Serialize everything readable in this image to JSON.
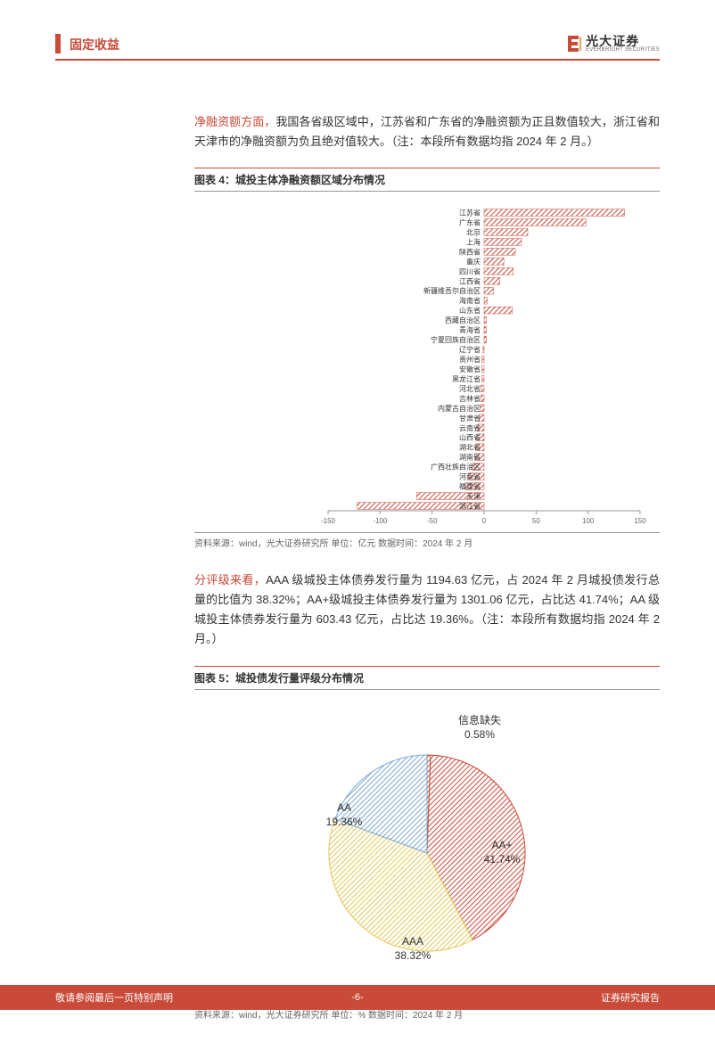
{
  "header": {
    "title": "固定收益",
    "logo_cn": "光大证券",
    "logo_en": "EVERBRIGHT SECURITIES"
  },
  "para1": {
    "highlight": "净融资额方面，",
    "rest": "我国各省级区域中，江苏省和广东省的净融资额为正且数值较大，浙江省和天津市的净融资额为负且绝对值较大。（注：本段所有数据均指 2024 年 2 月。）"
  },
  "chart4": {
    "title": "图表 4：城投主体净融资额区域分布情况",
    "source": "资料来源：wind，光大证券研究所    单位：亿元    数据时间：2024 年 2 月",
    "type": "bar",
    "xlim": [
      -150,
      150
    ],
    "xtick_step": 50,
    "xticks": [
      -150,
      -100,
      -50,
      0,
      50,
      100,
      150
    ],
    "bar_color": "#c94a38",
    "hatch": true,
    "background_color": "#ffffff",
    "label_fontsize": 8,
    "categories": [
      "江苏省",
      "广东省",
      "北京",
      "上海",
      "陕西省",
      "重庆",
      "四川省",
      "江西省",
      "新疆维吾尔自治区",
      "海南省",
      "山东省",
      "西藏自治区",
      "青海省",
      "宁夏回族自治区",
      "辽宁省",
      "贵州省",
      "安徽省",
      "黑龙江省",
      "河北省",
      "吉林省",
      "内蒙古自治区",
      "甘肃省",
      "云南省",
      "山西省",
      "湖北省",
      "湖南省",
      "广西壮族自治区",
      "河南省",
      "福建省",
      "天津",
      "浙江省"
    ],
    "values": [
      135,
      98,
      42,
      36,
      30,
      19,
      28,
      15,
      9,
      3,
      27,
      2,
      2,
      2,
      -1,
      -2,
      -2,
      -2,
      -3,
      -3,
      -4,
      -5,
      -6,
      -7,
      -8,
      -9,
      -12,
      -15,
      -18,
      -65,
      -122
    ]
  },
  "para2": {
    "highlight": "分评级来看，",
    "rest": "AAA 级城投主体债券发行量为 1194.63 亿元，占 2024 年 2 月城投债发行总量的比值为 38.32%；AA+级城投主体债券发行量为 1301.06 亿元，占比达 41.74%；AA 级城投主体债券发行量为 603.43 亿元，占比达 19.36%。（注：本段所有数据均指 2024 年 2 月。）"
  },
  "chart5": {
    "title": "图表 5：城投债发行量评级分布情况",
    "source": "资料来源：wind，光大证券研究所    单位：%    数据时间：2024 年 2 月",
    "type": "pie",
    "background_color": "#ffffff",
    "label_fontsize": 12,
    "slices": [
      {
        "label": "信息缺失",
        "value": 0.58,
        "display": "信息缺失\n0.58%",
        "color": "#c94a38",
        "label_color": "#b85c9e"
      },
      {
        "label": "AA+",
        "value": 41.74,
        "display": "AA+\n41.74%",
        "color": "#c94a38",
        "label_color": "#c94a38"
      },
      {
        "label": "AAA",
        "value": 38.32,
        "display": "AAA\n38.32%",
        "color": "#e6c757",
        "label_color": "#c9a83f"
      },
      {
        "label": "AA",
        "value": 19.36,
        "display": "AA\n19.36%",
        "color": "#7ba8d4",
        "label_color": "#5a8bb8"
      }
    ]
  },
  "footer": {
    "left": "敬请参阅最后一页特别声明",
    "center": "-6-",
    "right": "证券研究报告"
  }
}
